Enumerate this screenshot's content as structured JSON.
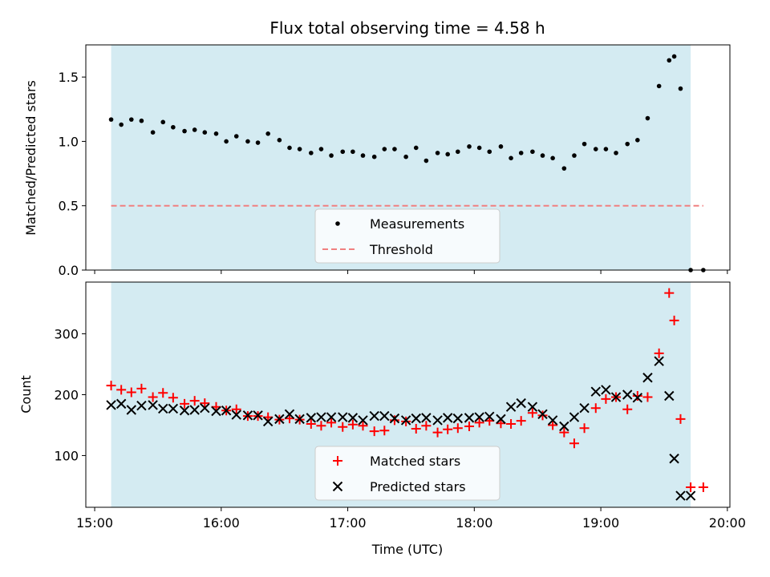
{
  "chart_data": [
    {
      "type": "scatter",
      "title": "Flux total observing time = 4.58 h",
      "ylabel": "Matched/Predicted stars",
      "xlabel": "",
      "ylim": [
        0,
        1.75
      ],
      "yticks": [
        "0.0",
        "0.5",
        "1.0",
        "1.5"
      ],
      "ytick_values": [
        0,
        0.5,
        1.0,
        1.5
      ],
      "legend": {
        "placement": "lower-center",
        "entries": [
          "Measurements",
          "Threshold"
        ]
      },
      "threshold": {
        "name": "Threshold",
        "value": 0.5,
        "color": "#f08080"
      },
      "series": [
        {
          "name": "Measurements",
          "color": "#000000",
          "marker": "dot",
          "x": [
            0.13,
            0.21,
            0.29,
            0.37,
            0.46,
            0.54,
            0.62,
            0.71,
            0.79,
            0.87,
            0.96,
            1.04,
            1.12,
            1.21,
            1.29,
            1.37,
            1.46,
            1.54,
            1.62,
            1.71,
            1.79,
            1.87,
            1.96,
            2.04,
            2.12,
            2.21,
            2.29,
            2.37,
            2.46,
            2.54,
            2.62,
            2.71,
            2.79,
            2.87,
            2.96,
            3.04,
            3.12,
            3.21,
            3.29,
            3.37,
            3.46,
            3.54,
            3.62,
            3.71,
            3.79,
            3.87,
            3.96,
            4.04,
            4.12,
            4.21,
            4.29,
            4.37,
            4.46,
            4.54,
            4.58,
            4.63,
            4.71,
            4.81
          ],
          "y": [
            1.17,
            1.13,
            1.17,
            1.16,
            1.07,
            1.15,
            1.11,
            1.08,
            1.09,
            1.07,
            1.06,
            1.0,
            1.04,
            1.0,
            0.99,
            1.06,
            1.01,
            0.95,
            0.94,
            0.91,
            0.94,
            0.89,
            0.92,
            0.92,
            0.89,
            0.88,
            0.94,
            0.94,
            0.88,
            0.95,
            0.85,
            0.91,
            0.9,
            0.92,
            0.96,
            0.95,
            0.92,
            0.96,
            0.87,
            0.91,
            0.92,
            0.89,
            0.87,
            0.79,
            0.89,
            0.98,
            0.94,
            0.94,
            0.91,
            0.98,
            1.01,
            1.18,
            1.43,
            1.63,
            1.66,
            1.41,
            0.0,
            0.0
          ]
        }
      ],
      "span": {
        "x0": 0.13,
        "x1": 4.71,
        "color": "#add8e6"
      }
    },
    {
      "type": "scatter",
      "title": "",
      "ylabel": "Count",
      "xlabel": "Time (UTC)",
      "ylim": [
        15,
        385
      ],
      "yticks": [
        "100",
        "200",
        "300"
      ],
      "ytick_values": [
        100,
        200,
        300
      ],
      "xlim": [
        -0.07,
        5.02
      ],
      "xticks": [
        "15:00",
        "16:00",
        "17:00",
        "18:00",
        "19:00",
        "20:00"
      ],
      "xtick_values": [
        0,
        1,
        2,
        3,
        4,
        5
      ],
      "legend": {
        "placement": "lower-center",
        "entries": [
          "Matched stars",
          "Predicted stars"
        ]
      },
      "series": [
        {
          "name": "Matched stars",
          "color": "#ff0000",
          "marker": "plus",
          "x": [
            0.13,
            0.21,
            0.29,
            0.37,
            0.46,
            0.54,
            0.62,
            0.71,
            0.79,
            0.87,
            0.96,
            1.04,
            1.12,
            1.21,
            1.29,
            1.37,
            1.46,
            1.54,
            1.62,
            1.71,
            1.79,
            1.87,
            1.96,
            2.04,
            2.12,
            2.21,
            2.29,
            2.37,
            2.46,
            2.54,
            2.62,
            2.71,
            2.79,
            2.87,
            2.96,
            3.04,
            3.12,
            3.21,
            3.29,
            3.37,
            3.46,
            3.54,
            3.62,
            3.71,
            3.79,
            3.87,
            3.96,
            4.04,
            4.12,
            4.21,
            4.29,
            4.37,
            4.46,
            4.54,
            4.58,
            4.63,
            4.71,
            4.81
          ],
          "y": [
            215,
            208,
            204,
            210,
            196,
            203,
            195,
            185,
            190,
            186,
            180,
            174,
            176,
            165,
            165,
            163,
            159,
            161,
            159,
            152,
            149,
            154,
            147,
            151,
            149,
            140,
            141,
            158,
            156,
            144,
            149,
            138,
            143,
            145,
            148,
            154,
            157,
            153,
            152,
            157,
            170,
            166,
            150,
            138,
            120,
            145,
            178,
            193,
            196,
            176,
            198,
            196,
            268,
            367,
            322,
            160,
            48,
            48
          ]
        },
        {
          "name": "Predicted stars",
          "color": "#000000",
          "marker": "x",
          "x": [
            0.13,
            0.21,
            0.29,
            0.37,
            0.46,
            0.54,
            0.62,
            0.71,
            0.79,
            0.87,
            0.96,
            1.04,
            1.12,
            1.21,
            1.29,
            1.37,
            1.46,
            1.54,
            1.62,
            1.71,
            1.79,
            1.87,
            1.96,
            2.04,
            2.12,
            2.21,
            2.29,
            2.37,
            2.46,
            2.54,
            2.62,
            2.71,
            2.79,
            2.87,
            2.96,
            3.04,
            3.12,
            3.21,
            3.29,
            3.37,
            3.46,
            3.54,
            3.62,
            3.71,
            3.79,
            3.87,
            3.96,
            4.04,
            4.12,
            4.21,
            4.29,
            4.37,
            4.46,
            4.54,
            4.58,
            4.63,
            4.71
          ],
          "y": [
            183,
            185,
            175,
            182,
            183,
            177,
            177,
            174,
            175,
            178,
            173,
            174,
            167,
            166,
            166,
            156,
            160,
            168,
            160,
            162,
            163,
            163,
            163,
            162,
            158,
            165,
            165,
            161,
            158,
            161,
            162,
            158,
            162,
            161,
            162,
            163,
            164,
            160,
            180,
            186,
            180,
            168,
            158,
            148,
            163,
            178,
            205,
            208,
            196,
            200,
            195,
            228,
            255,
            198,
            95,
            34,
            34
          ]
        }
      ],
      "span": {
        "x0": 0.13,
        "x1": 4.71,
        "color": "#add8e6"
      }
    }
  ]
}
